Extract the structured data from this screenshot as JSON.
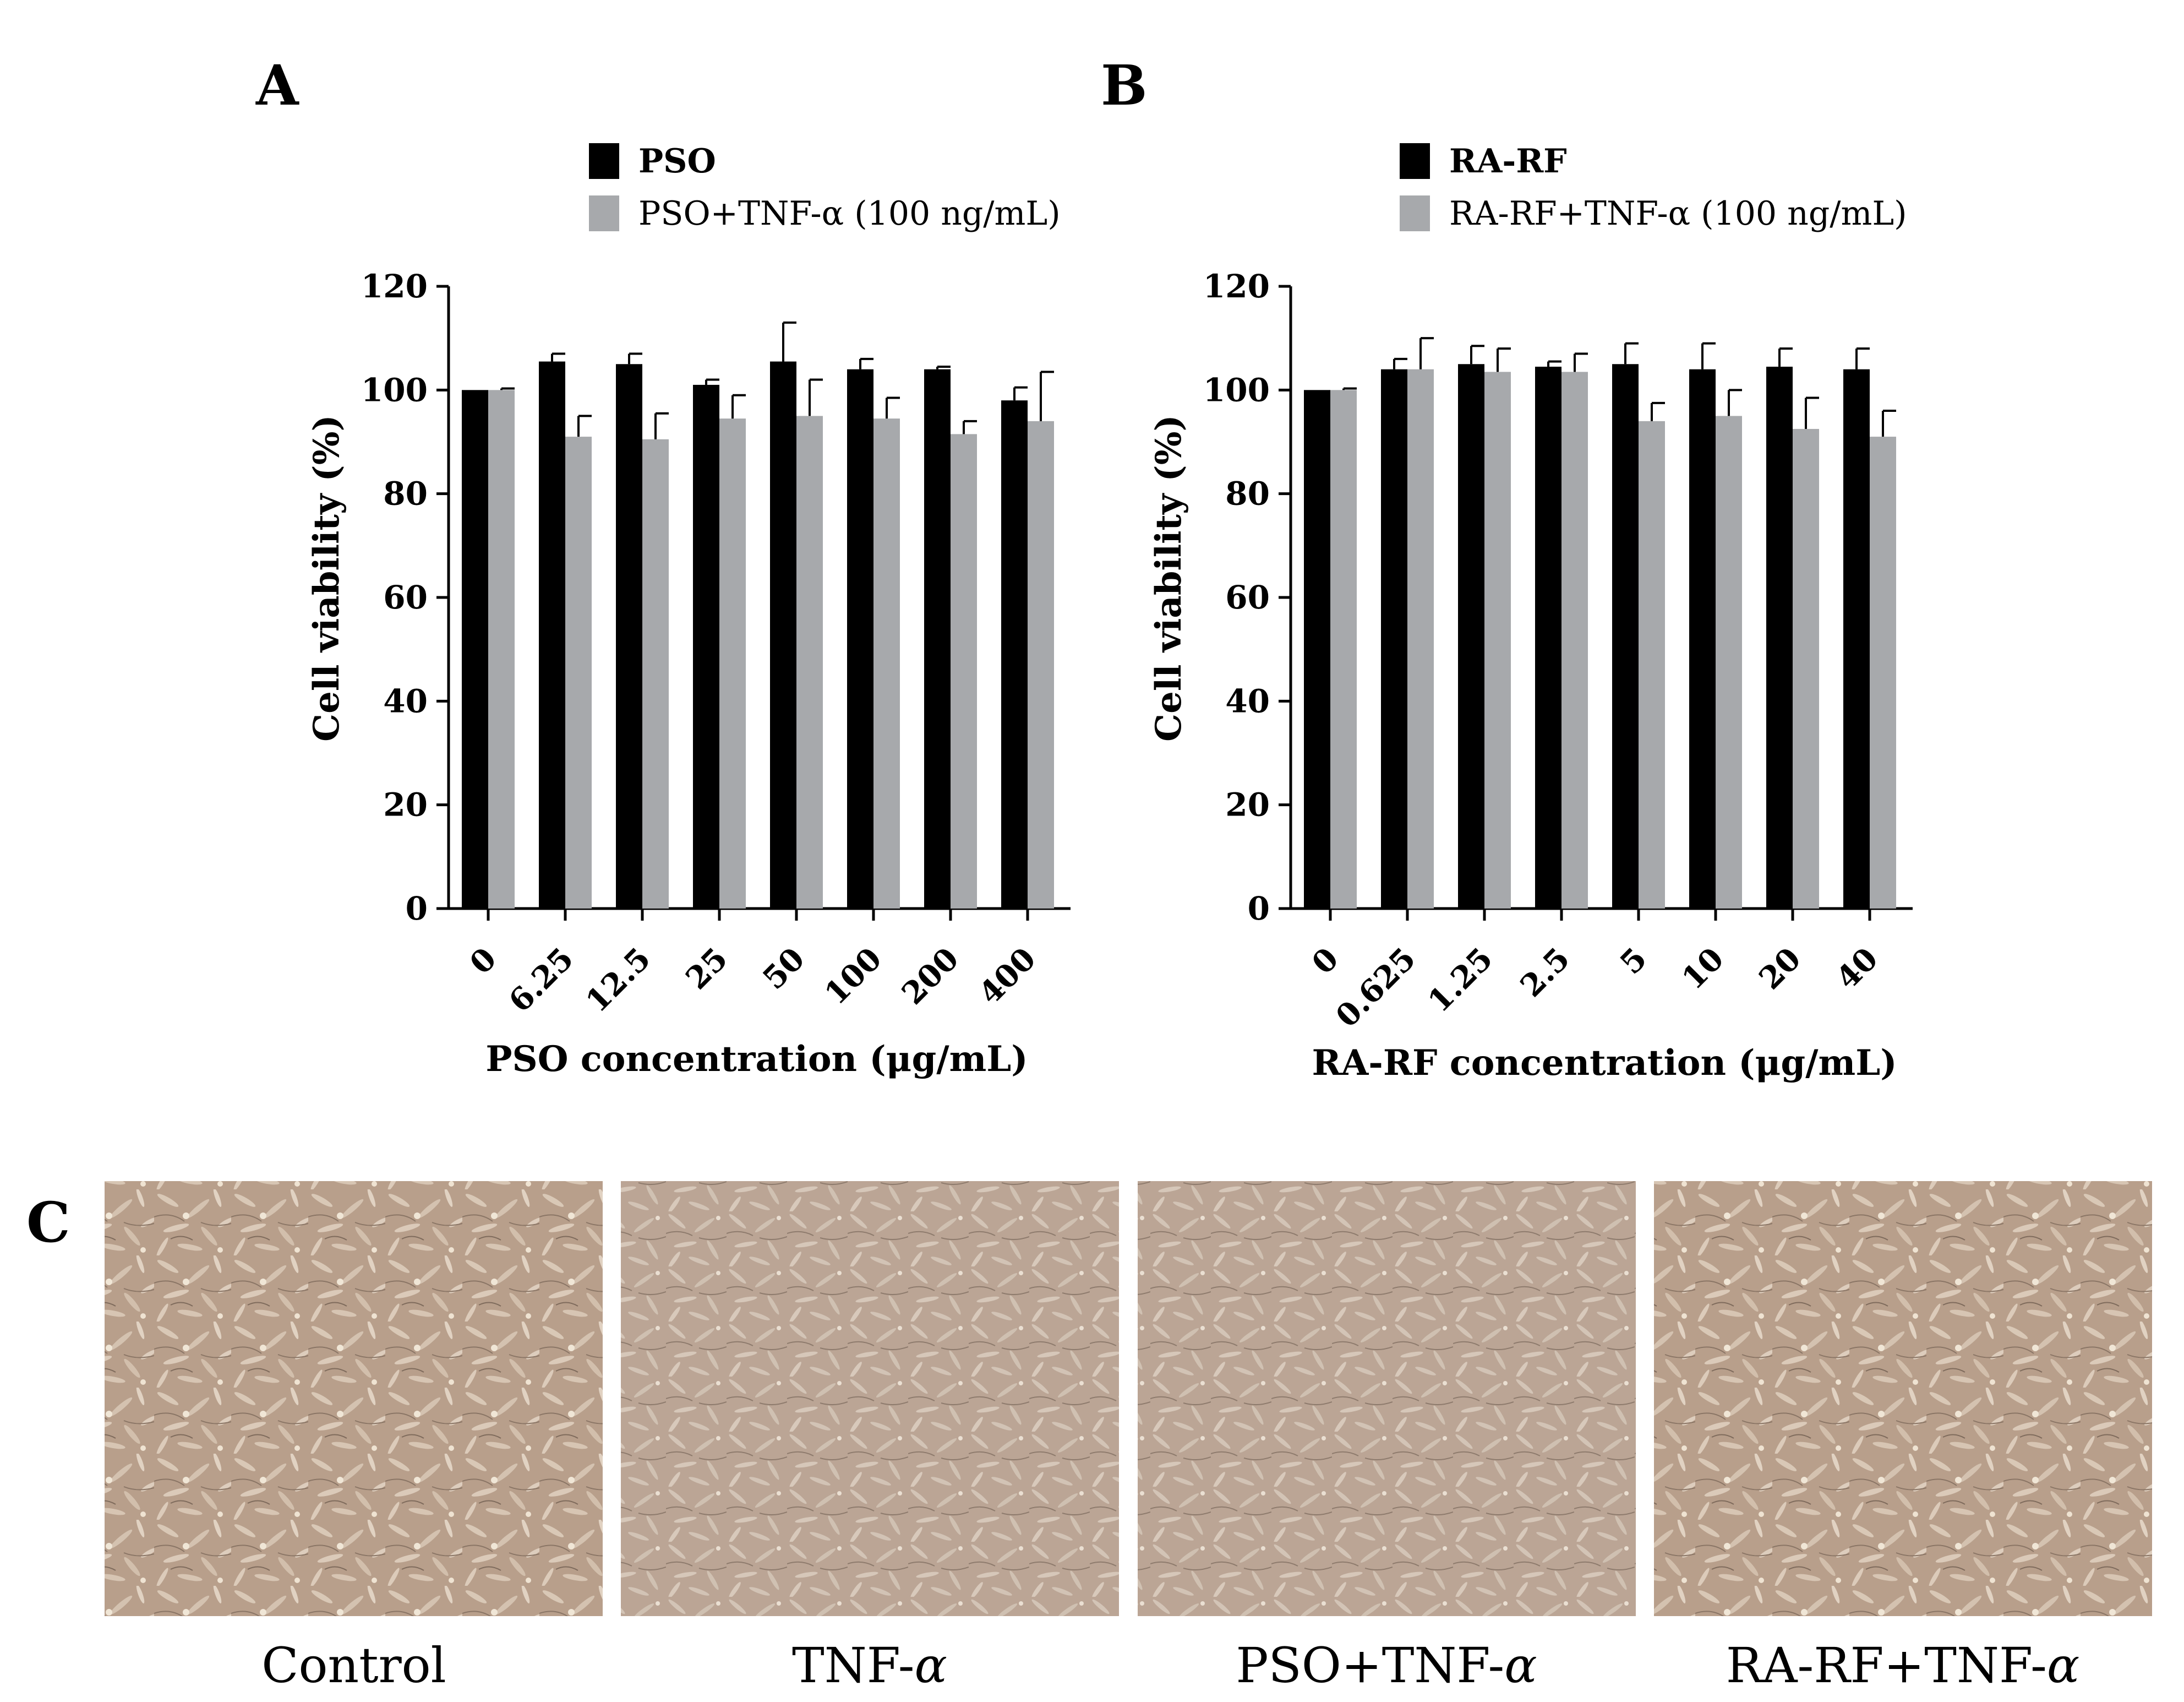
{
  "panels": {
    "a_letter": "A",
    "b_letter": "B",
    "c_letter": "C"
  },
  "colors": {
    "black": "#000000",
    "grey": "#a7a9ac",
    "axis": "#000000",
    "micrograph_base": "#b59d8a",
    "micrograph_cell": "#d4c2b0",
    "micrograph_dark": "#7d6a5c"
  },
  "chart_data": [
    {
      "type": "bar",
      "ylabel": "Cell viability (%)",
      "xlabel": "PSO concentration (μg/mL)",
      "ylim": [
        0,
        120
      ],
      "yticks": [
        "0",
        "20",
        "40",
        "60",
        "80",
        "100",
        "120"
      ],
      "categories": [
        "0",
        "6.25",
        "12.5",
        "25",
        "50",
        "100",
        "200",
        "400"
      ],
      "legend_position": "top-center",
      "series": [
        {
          "name": "PSO",
          "color": "black",
          "values": [
            100,
            105.5,
            105,
            101,
            105.5,
            104,
            104,
            98
          ],
          "errors": [
            0,
            1.5,
            2,
            1,
            7.5,
            2,
            0.5,
            2.5
          ]
        },
        {
          "name": "PSO+TNF-α (100 ng/mL)",
          "color": "grey",
          "values": [
            100,
            91,
            90.5,
            94.5,
            95,
            94.5,
            91.5,
            94
          ],
          "errors": [
            0.3,
            4,
            5,
            4.5,
            7,
            4,
            2.5,
            9.5
          ]
        }
      ]
    },
    {
      "type": "bar",
      "ylabel": "Cell viability (%)",
      "xlabel": "RA-RF concentration (μg/mL)",
      "ylim": [
        0,
        120
      ],
      "yticks": [
        "0",
        "20",
        "40",
        "60",
        "80",
        "100",
        "120"
      ],
      "categories": [
        "0",
        "0.625",
        "1.25",
        "2.5",
        "5",
        "10",
        "20",
        "40"
      ],
      "legend_position": "top-center",
      "series": [
        {
          "name": "RA-RF",
          "color": "black",
          "values": [
            100,
            104,
            105,
            104.5,
            105,
            104,
            104.5,
            104
          ],
          "errors": [
            0,
            2,
            3.5,
            1,
            4,
            5,
            3.5,
            4
          ]
        },
        {
          "name": "RA-RF+TNF-α (100 ng/mL)",
          "color": "grey",
          "values": [
            100,
            104,
            103.5,
            103.5,
            94,
            95,
            92.5,
            91
          ],
          "errors": [
            0.3,
            6,
            4.5,
            3.5,
            3.5,
            5,
            6,
            5
          ]
        }
      ]
    }
  ],
  "micrographs": [
    {
      "caption_main": "Control",
      "caption_italic": ""
    },
    {
      "caption_main": "TNF-",
      "caption_italic": "α"
    },
    {
      "caption_main": "PSO+TNF-",
      "caption_italic": "α"
    },
    {
      "caption_main": "RA-RF+TNF-",
      "caption_italic": "α"
    }
  ]
}
